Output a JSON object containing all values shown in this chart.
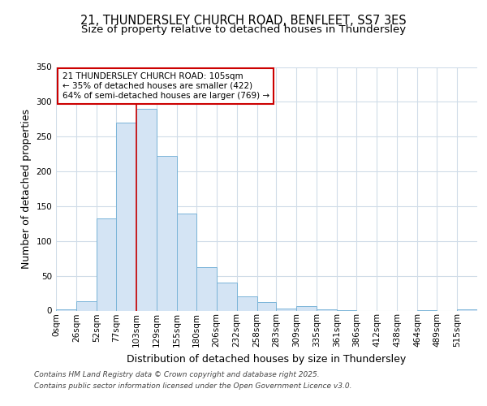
{
  "title_line1": "21, THUNDERSLEY CHURCH ROAD, BENFLEET, SS7 3ES",
  "title_line2": "Size of property relative to detached houses in Thundersley",
  "xlabel": "Distribution of detached houses by size in Thundersley",
  "ylabel": "Number of detached properties",
  "bin_labels": [
    "0sqm",
    "26sqm",
    "52sqm",
    "77sqm",
    "103sqm",
    "129sqm",
    "155sqm",
    "180sqm",
    "206sqm",
    "232sqm",
    "258sqm",
    "283sqm",
    "309sqm",
    "335sqm",
    "361sqm",
    "386sqm",
    "412sqm",
    "438sqm",
    "464sqm",
    "489sqm",
    "515sqm"
  ],
  "bin_edges": [
    0,
    26,
    52,
    77,
    103,
    129,
    155,
    180,
    206,
    232,
    258,
    283,
    309,
    335,
    361,
    386,
    412,
    438,
    464,
    489,
    515,
    541
  ],
  "bar_heights": [
    2,
    13,
    133,
    270,
    290,
    222,
    140,
    62,
    40,
    20,
    12,
    3,
    6,
    2,
    1,
    0,
    0,
    0,
    1,
    0,
    2
  ],
  "bar_color": "#d4e4f4",
  "bar_edge_color": "#7ab4d8",
  "red_line_x": 103,
  "annotation_text": "21 THUNDERSLEY CHURCH ROAD: 105sqm\n← 35% of detached houses are smaller (422)\n64% of semi-detached houses are larger (769) →",
  "annotation_box_color": "#ffffff",
  "annotation_box_edge": "#cc0000",
  "ylim": [
    0,
    350
  ],
  "yticks": [
    0,
    50,
    100,
    150,
    200,
    250,
    300,
    350
  ],
  "bg_color": "#ffffff",
  "plot_bg_color": "#ffffff",
  "grid_color": "#d0dce8",
  "title_fontsize": 10.5,
  "subtitle_fontsize": 9.5,
  "axis_label_fontsize": 9,
  "tick_fontsize": 7.5,
  "annotation_fontsize": 7.5,
  "footer_fontsize": 6.5,
  "footer_line1": "Contains HM Land Registry data © Crown copyright and database right 2025.",
  "footer_line2": "Contains public sector information licensed under the Open Government Licence v3.0."
}
